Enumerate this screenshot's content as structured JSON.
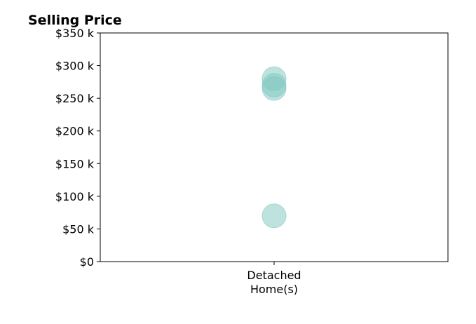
{
  "chart_data": {
    "type": "scatter",
    "title": "Selling Price",
    "xlabel": "",
    "ylabel": "",
    "categories": [
      "Detached\nHome(s)"
    ],
    "y_ticks": [
      0,
      50000,
      100000,
      150000,
      200000,
      250000,
      300000,
      350000
    ],
    "y_tick_labels": [
      "$0",
      "$50 k",
      "$100 k",
      "$150 k",
      "$200 k",
      "$250 k",
      "$300 k",
      "$350 k"
    ],
    "ylim": [
      0,
      350000
    ],
    "grid": false,
    "series": [
      {
        "color": "#7ec8bf",
        "points": [
          {
            "category": "Detached\nHome(s)",
            "y": 280000
          },
          {
            "category": "Detached\nHome(s)",
            "y": 270000
          },
          {
            "category": "Detached\nHome(s)",
            "y": 265000
          },
          {
            "category": "Detached\nHome(s)",
            "y": 70000
          }
        ]
      }
    ]
  }
}
